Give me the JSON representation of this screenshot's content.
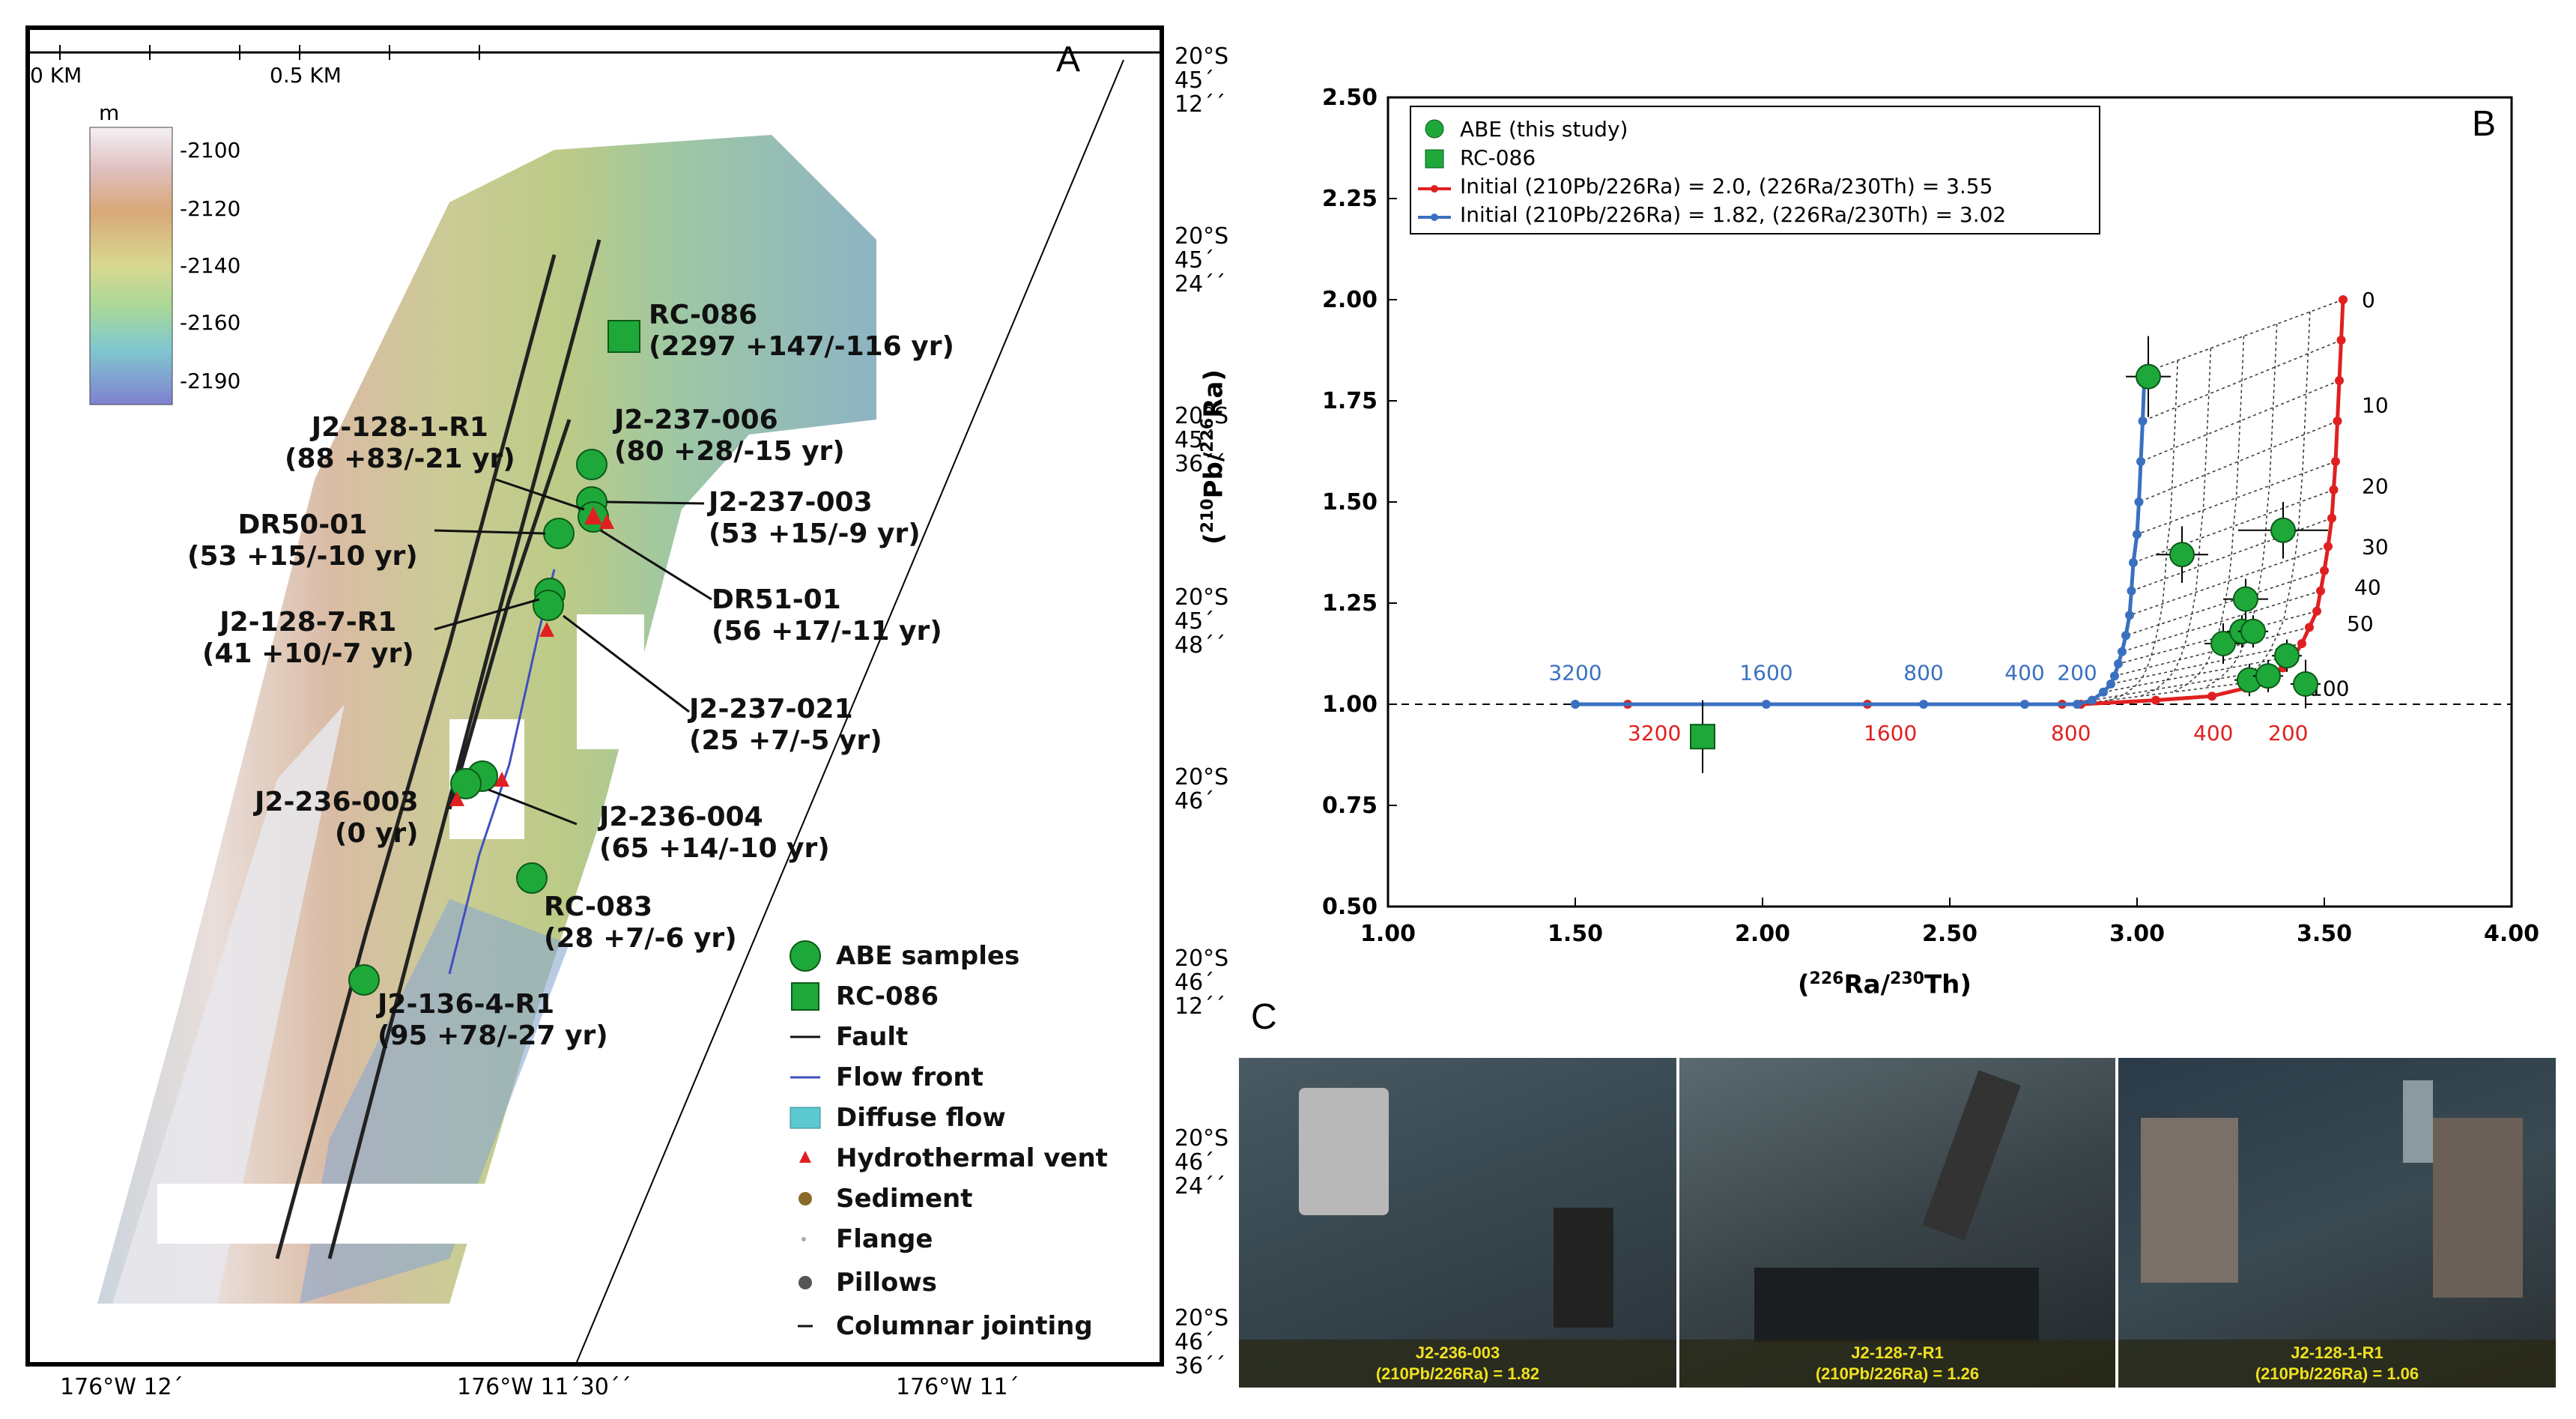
{
  "panel_a": {
    "letter": "A",
    "scale": {
      "left": "0 KM",
      "right": "0.5 KM"
    },
    "colorbar": {
      "unit": "m",
      "ticks": [
        "-2100",
        "-2120",
        "-2140",
        "-2160",
        "-2190"
      ]
    },
    "lat_labels": [
      {
        "l1": "20°S",
        "l2": "45´",
        "l3": "12´´"
      },
      {
        "l1": "20°S",
        "l2": "45´",
        "l3": "24´´"
      },
      {
        "l1": "20°S",
        "l2": "45´",
        "l3": "36´´"
      },
      {
        "l1": "20°S",
        "l2": "45´",
        "l3": "48´´"
      },
      {
        "l1": "20°S",
        "l2": "46´",
        "l3": ""
      },
      {
        "l1": "20°S",
        "l2": "46´",
        "l3": "12´´"
      },
      {
        "l1": "20°S",
        "l2": "46´",
        "l3": "24´´"
      },
      {
        "l1": "20°S",
        "l2": "46´",
        "l3": "36´´"
      }
    ],
    "lon_labels": [
      "176°W 12´",
      "176°W 11´30´´",
      "176°W 11´"
    ],
    "samples": [
      {
        "name": "RC-086",
        "age": "(2297 +147/-116 yr)"
      },
      {
        "name": "J2-237-006",
        "age": "(80 +28/-15 yr)"
      },
      {
        "name": "J2-128-1-R1",
        "age": "(88 +83/-21 yr)"
      },
      {
        "name": "J2-237-003",
        "age": "(53 +15/-9 yr)"
      },
      {
        "name": "DR50-01",
        "age": "(53 +15/-10 yr)"
      },
      {
        "name": "DR51-01",
        "age": "(56 +17/-11 yr)"
      },
      {
        "name": "J2-128-7-R1",
        "age": "(41 +10/-7 yr)"
      },
      {
        "name": "J2-237-021",
        "age": "(25 +7/-5 yr)"
      },
      {
        "name": "J2-236-003",
        "age": "(0 yr)"
      },
      {
        "name": "J2-236-004",
        "age": "(65 +14/-10 yr)"
      },
      {
        "name": "RC-083",
        "age": "(28 +7/-6 yr)"
      },
      {
        "name": "J2-136-4-R1",
        "age": "(95 +78/-27 yr)"
      }
    ],
    "legend": [
      "ABE samples",
      "RC-086",
      "Fault",
      "Flow front",
      "Diffuse flow",
      "Hydrothermal vent",
      "Sediment",
      "Flange",
      "Pillows",
      "Columnar jointing"
    ],
    "colors": {
      "green": "#1fa83a",
      "vent": "#e02020",
      "flow": "#4050c0",
      "diffuse": "#5cc8d0"
    }
  },
  "panel_b": {
    "letter": "B",
    "chart_data": {
      "type": "scatter",
      "xlabel": "(226Ra/230Th)",
      "ylabel": "(210Pb/226Ra)",
      "xlim": [
        1.0,
        4.0
      ],
      "ylim": [
        0.5,
        2.5
      ],
      "x_ticks": [
        "1.00",
        "1.50",
        "2.00",
        "2.50",
        "3.00",
        "3.50",
        "4.00"
      ],
      "y_ticks": [
        "0.50",
        "0.75",
        "1.00",
        "1.25",
        "1.50",
        "1.75",
        "2.00",
        "2.25",
        "2.50"
      ],
      "legend": [
        "ABE (this study)",
        "RC-086",
        "Initial (210Pb/226Ra) = 2.0, (226Ra/230Th) = 3.55",
        "Initial (210Pb/226Ra) = 1.82, (226Ra/230Th) = 3.02"
      ],
      "abe_points": [
        {
          "x": 3.03,
          "y": 1.81,
          "xerr": 0.06,
          "yerr": 0.1
        },
        {
          "x": 3.12,
          "y": 1.37,
          "xerr": 0.07,
          "yerr": 0.07
        },
        {
          "x": 3.39,
          "y": 1.43,
          "xerr": 0.12,
          "yerr": 0.07
        },
        {
          "x": 3.29,
          "y": 1.26,
          "xerr": 0.06,
          "yerr": 0.05
        },
        {
          "x": 3.23,
          "y": 1.15,
          "xerr": 0.05,
          "yerr": 0.05
        },
        {
          "x": 3.28,
          "y": 1.18,
          "xerr": 0.04,
          "yerr": 0.04
        },
        {
          "x": 3.31,
          "y": 1.18,
          "xerr": 0.04,
          "yerr": 0.04
        },
        {
          "x": 3.4,
          "y": 1.12,
          "xerr": 0.04,
          "yerr": 0.04
        },
        {
          "x": 3.3,
          "y": 1.06,
          "xerr": 0.04,
          "yerr": 0.04
        },
        {
          "x": 3.35,
          "y": 1.07,
          "xerr": 0.04,
          "yerr": 0.04
        },
        {
          "x": 3.45,
          "y": 1.05,
          "xerr": 0.04,
          "yerr": 0.06
        }
      ],
      "rc086_point": {
        "x": 1.84,
        "y": 0.92,
        "xerr": 0.02,
        "yerr": 0.09
      },
      "red_curve": [
        [
          3.55,
          2.0
        ],
        [
          3.545,
          1.9
        ],
        [
          3.54,
          1.8
        ],
        [
          3.535,
          1.7
        ],
        [
          3.53,
          1.6
        ],
        [
          3.525,
          1.53
        ],
        [
          3.52,
          1.46
        ],
        [
          3.51,
          1.39
        ],
        [
          3.5,
          1.33
        ],
        [
          3.49,
          1.28
        ],
        [
          3.48,
          1.23
        ],
        [
          3.46,
          1.19
        ],
        [
          3.44,
          1.15
        ],
        [
          3.42,
          1.12
        ],
        [
          3.39,
          1.09
        ],
        [
          3.35,
          1.06
        ],
        [
          3.29,
          1.04
        ],
        [
          3.2,
          1.02
        ],
        [
          3.05,
          1.01
        ],
        [
          2.85,
          1.0
        ],
        [
          2.8,
          1.0
        ],
        [
          2.28,
          1.0
        ],
        [
          1.64,
          1.0
        ]
      ],
      "blue_curve": [
        [
          3.02,
          1.82
        ],
        [
          3.015,
          1.7
        ],
        [
          3.01,
          1.6
        ],
        [
          3.005,
          1.5
        ],
        [
          3.0,
          1.42
        ],
        [
          2.99,
          1.35
        ],
        [
          2.985,
          1.28
        ],
        [
          2.98,
          1.22
        ],
        [
          2.97,
          1.17
        ],
        [
          2.96,
          1.13
        ],
        [
          2.95,
          1.1
        ],
        [
          2.94,
          1.07
        ],
        [
          2.93,
          1.05
        ],
        [
          2.91,
          1.03
        ],
        [
          2.88,
          1.01
        ],
        [
          2.84,
          1.0
        ],
        [
          2.7,
          1.0
        ],
        [
          2.43,
          1.0
        ],
        [
          2.01,
          1.0
        ],
        [
          1.5,
          1.0
        ]
      ],
      "red_age_labels": [
        {
          "text": "0",
          "x": 3.6,
          "y": 2.0
        },
        {
          "text": "10",
          "x": 3.6,
          "y": 1.74
        },
        {
          "text": "20",
          "x": 3.6,
          "y": 1.54
        },
        {
          "text": "30",
          "x": 3.6,
          "y": 1.39
        },
        {
          "text": "40",
          "x": 3.58,
          "y": 1.29
        },
        {
          "text": "50",
          "x": 3.56,
          "y": 1.2
        },
        {
          "text": "100",
          "x": 3.46,
          "y": 1.04
        },
        {
          "text": "200",
          "x": 3.35,
          "y": 0.93
        },
        {
          "text": "400",
          "x": 3.15,
          "y": 0.93
        },
        {
          "text": "800",
          "x": 2.77,
          "y": 0.93
        },
        {
          "text": "1600",
          "x": 2.27,
          "y": 0.93
        },
        {
          "text": "3200",
          "x": 1.64,
          "y": 0.93
        }
      ],
      "blue_age_labels": [
        {
          "text": "200",
          "x": 2.84,
          "y": 1.06
        },
        {
          "text": "400",
          "x": 2.7,
          "y": 1.06
        },
        {
          "text": "800",
          "x": 2.43,
          "y": 1.06
        },
        {
          "text": "1600",
          "x": 2.01,
          "y": 1.06
        },
        {
          "text": "3200",
          "x": 1.5,
          "y": 1.06
        }
      ],
      "dashed_reference_y": 1.0
    }
  },
  "panel_c": {
    "letter": "C",
    "photos": [
      {
        "name": "J2-236-003",
        "ratio": "(210Pb/226Ra) = 1.82"
      },
      {
        "name": "J2-128-7-R1",
        "ratio": "(210Pb/226Ra) = 1.26"
      },
      {
        "name": "J2-128-1-R1",
        "ratio": "(210Pb/226Ra) = 1.06"
      }
    ]
  }
}
